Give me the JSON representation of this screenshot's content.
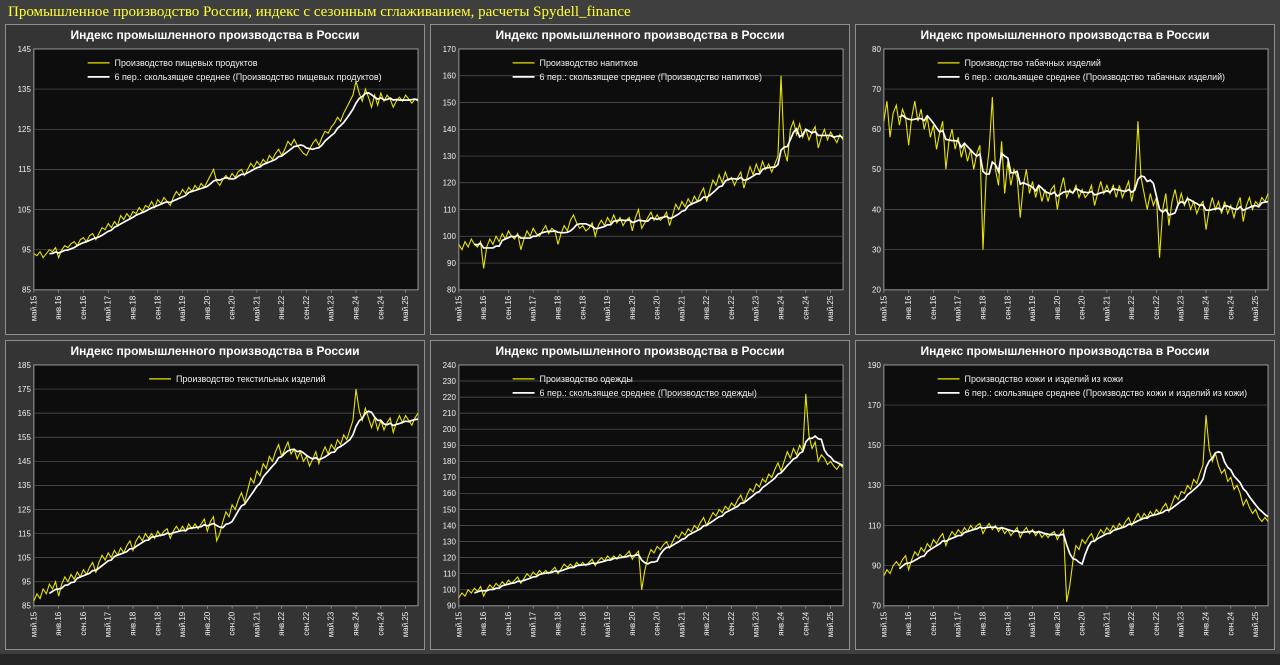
{
  "page": {
    "title": "Промышленное производство России, индекс с сезонным сглаживанием, расчеты Spydell_finance",
    "title_color": "#ffff33",
    "background": "#3f3f3f"
  },
  "colors": {
    "series": "#e8e400",
    "ma": "#ffffff",
    "plot_bg": "#0d0d0d",
    "plot_border": "#9a9a9a",
    "grid": "#575757",
    "text": "#f0f0f0"
  },
  "x_axis": {
    "labels": [
      "май.15",
      "янв.16",
      "сен.16",
      "май.17",
      "янв.18",
      "сен.18",
      "май.19",
      "янв.20",
      "сен.20",
      "май.21",
      "янв.22",
      "сен.22",
      "май.23",
      "янв.24",
      "сен.24",
      "май.25"
    ],
    "every": 8,
    "n_points": 125
  },
  "chart_data": [
    {
      "type": "line",
      "title": "Индекс промышленного производства в России",
      "legend": [
        {
          "label": "Производство пищевых продуктов",
          "color": "#e8e400"
        },
        {
          "label": "6 пер.: скользящее среднее (Производство пищевых продуктов)",
          "color": "#ffffff"
        }
      ],
      "ylim": [
        85,
        145
      ],
      "ytick_step": 10,
      "ma_period": 6,
      "values": [
        94,
        93.5,
        94.5,
        93,
        94,
        95,
        94.5,
        95.5,
        93,
        95,
        96,
        95.5,
        96.5,
        97,
        96,
        97.5,
        98,
        97,
        98.5,
        99,
        97.5,
        99,
        100.5,
        100,
        101.5,
        100.5,
        102,
        101,
        103.5,
        102.5,
        104,
        103,
        104.5,
        104,
        105.5,
        104.5,
        106,
        105.5,
        107,
        105.5,
        107.5,
        106.5,
        108,
        107,
        106,
        108,
        109.5,
        108.5,
        110,
        109,
        110.5,
        109.5,
        111,
        110,
        111.5,
        110.5,
        112,
        113.5,
        115,
        112,
        111,
        112.5,
        113.5,
        112.5,
        114,
        113,
        114.5,
        115,
        113.5,
        115,
        116.5,
        115.5,
        117,
        116,
        117.5,
        116.5,
        118.5,
        117.5,
        119,
        120,
        118.5,
        120,
        122,
        121,
        122.5,
        121,
        120,
        119,
        118.5,
        120,
        121.5,
        122.5,
        121,
        123,
        124.5,
        124,
        125.5,
        126.5,
        128,
        127,
        129,
        130.5,
        132,
        133.5,
        137,
        134,
        132,
        135,
        133,
        130.5,
        133.5,
        131,
        134,
        132,
        133.5,
        132.5,
        130.5,
        132,
        133,
        132,
        133.5,
        132.5,
        131.5,
        132.5,
        132
      ]
    },
    {
      "type": "line",
      "title": "Индекс промышленного производства в России",
      "legend": [
        {
          "label": "Производство напитков",
          "color": "#e8e400"
        },
        {
          "label": "6 пер.: скользящее среднее (Производство напитков)",
          "color": "#ffffff"
        }
      ],
      "ylim": [
        80,
        170
      ],
      "ytick_step": 10,
      "ma_period": 6,
      "values": [
        97,
        95,
        98,
        96,
        99,
        97,
        96,
        98,
        88,
        96,
        99,
        97,
        100,
        98,
        101,
        99,
        102,
        100,
        99,
        101,
        95,
        99,
        102,
        100,
        103,
        101,
        100,
        102,
        104,
        101,
        103,
        102,
        97,
        101,
        104,
        102,
        106,
        108,
        105,
        103,
        104,
        102,
        103,
        105,
        100,
        104,
        106,
        104,
        107,
        105,
        108,
        105,
        107,
        104,
        106,
        107,
        102,
        107,
        110,
        103,
        105,
        107,
        109,
        106,
        108,
        106,
        107,
        109,
        104,
        108,
        112,
        110,
        113,
        111,
        114,
        112,
        115,
        113,
        116,
        118,
        113,
        117,
        121,
        119,
        123,
        120,
        124,
        121,
        122,
        119,
        122,
        124,
        118,
        122,
        126,
        123,
        127,
        124,
        128,
        125,
        127,
        124,
        127,
        130,
        160,
        132,
        128,
        140,
        143,
        138,
        142,
        137,
        140,
        136,
        139,
        141,
        133,
        137,
        140,
        136,
        139,
        137,
        135,
        138,
        136
      ]
    },
    {
      "type": "line",
      "title": "Индекс промышленного производства в России",
      "legend": [
        {
          "label": "Производство табачных изделий",
          "color": "#e8e400"
        },
        {
          "label": "6 пер.: скользящее среднее (Производство табачных изделий)",
          "color": "#ffffff"
        }
      ],
      "ylim": [
        20,
        80
      ],
      "ytick_step": 10,
      "ma_period": 6,
      "values": [
        62,
        67,
        58,
        64,
        66,
        61,
        65,
        63,
        56,
        63,
        67,
        62,
        65,
        60,
        63,
        58,
        61,
        55,
        59,
        62,
        50,
        57,
        60,
        55,
        58,
        53,
        56,
        52,
        55,
        50,
        54,
        56,
        30,
        48,
        55,
        68,
        50,
        46,
        57,
        44,
        52,
        46,
        50,
        48,
        38,
        46,
        50,
        44,
        47,
        43,
        46,
        42,
        45,
        42,
        45,
        46,
        40,
        45,
        48,
        43,
        45,
        44,
        46,
        43,
        45,
        43,
        44,
        46,
        41,
        44,
        47,
        44,
        46,
        44,
        46,
        43,
        46,
        43,
        45,
        47,
        42,
        46,
        62,
        48,
        44,
        40,
        44,
        41,
        43,
        28,
        40,
        44,
        36,
        42,
        45,
        41,
        44,
        41,
        43,
        40,
        42,
        39,
        41,
        42,
        35,
        40,
        43,
        40,
        42,
        39,
        42,
        39,
        41,
        38,
        41,
        43,
        37,
        41,
        43,
        40,
        42,
        41,
        43,
        42,
        44
      ]
    },
    {
      "type": "line",
      "title": "Индекс промышленного производства в России",
      "legend": [
        {
          "label": "Производство текстильных изделий",
          "color": "#e8e400"
        }
      ],
      "ylim": [
        85,
        185
      ],
      "ytick_step": 10,
      "ma_period": 6,
      "values": [
        87,
        90,
        88,
        92,
        90,
        94,
        92,
        95,
        89,
        94,
        97,
        95,
        98,
        96,
        99,
        97,
        100,
        98,
        101,
        103,
        99,
        103,
        106,
        104,
        107,
        105,
        108,
        106,
        109,
        107,
        110,
        112,
        108,
        112,
        114,
        112,
        115,
        113,
        115,
        113,
        116,
        114,
        116,
        117,
        113,
        116,
        118,
        116,
        118,
        116,
        119,
        117,
        119,
        117,
        119,
        121,
        116,
        120,
        122,
        112,
        115,
        120,
        124,
        122,
        127,
        125,
        129,
        132,
        128,
        133,
        138,
        136,
        141,
        139,
        144,
        142,
        147,
        145,
        149,
        152,
        147,
        150,
        153,
        148,
        150,
        146,
        149,
        145,
        147,
        143,
        146,
        149,
        144,
        148,
        151,
        148,
        152,
        150,
        154,
        152,
        156,
        154,
        158,
        162,
        175,
        166,
        162,
        167,
        163,
        159,
        163,
        158,
        162,
        158,
        161,
        163,
        157,
        161,
        164,
        161,
        164,
        162,
        160,
        163,
        165
      ]
    },
    {
      "type": "line",
      "title": "Индекс промышленного производства в России",
      "legend": [
        {
          "label": "Производство одежды",
          "color": "#e8e400"
        },
        {
          "label": "6 пер.: скользящее среднее (Производство одежды)",
          "color": "#ffffff"
        }
      ],
      "ylim": [
        90,
        240
      ],
      "ytick_step": 10,
      "ma_period": 6,
      "values": [
        95,
        98,
        96,
        100,
        98,
        101,
        99,
        102,
        96,
        100,
        103,
        101,
        104,
        102,
        105,
        103,
        106,
        104,
        106,
        108,
        104,
        107,
        110,
        108,
        111,
        109,
        112,
        110,
        112,
        110,
        112,
        114,
        110,
        113,
        116,
        114,
        116,
        114,
        117,
        115,
        117,
        115,
        117,
        119,
        115,
        118,
        120,
        118,
        121,
        119,
        121,
        119,
        122,
        120,
        122,
        124,
        119,
        122,
        124,
        100,
        112,
        120,
        125,
        123,
        127,
        125,
        128,
        130,
        126,
        130,
        134,
        132,
        136,
        134,
        138,
        136,
        140,
        138,
        142,
        145,
        140,
        144,
        148,
        146,
        150,
        148,
        152,
        150,
        154,
        152,
        156,
        159,
        154,
        159,
        163,
        161,
        166,
        164,
        169,
        167,
        172,
        170,
        175,
        179,
        174,
        180,
        186,
        182,
        188,
        184,
        190,
        186,
        222,
        196,
        188,
        192,
        180,
        184,
        182,
        178,
        180,
        177,
        175,
        178,
        176
      ]
    },
    {
      "type": "line",
      "title": "Индекс промышленного производства в России",
      "legend": [
        {
          "label": "Производство кожи и изделий из кожи",
          "color": "#e8e400"
        },
        {
          "label": "6 пер.: скользящее среднее (Производство кожи и изделий из кожи)",
          "color": "#ffffff"
        }
      ],
      "ylim": [
        70,
        190
      ],
      "ytick_step": 20,
      "ma_period": 6,
      "values": [
        85,
        88,
        86,
        90,
        92,
        90,
        93,
        95,
        88,
        93,
        97,
        95,
        99,
        97,
        101,
        99,
        103,
        101,
        104,
        106,
        100,
        104,
        107,
        105,
        108,
        106,
        109,
        107,
        110,
        108,
        110,
        111,
        106,
        109,
        111,
        108,
        110,
        107,
        109,
        106,
        108,
        105,
        107,
        109,
        104,
        107,
        109,
        106,
        108,
        105,
        107,
        104,
        106,
        104,
        106,
        107,
        103,
        106,
        108,
        72,
        80,
        92,
        100,
        98,
        103,
        101,
        104,
        106,
        102,
        105,
        108,
        106,
        109,
        107,
        110,
        108,
        111,
        109,
        112,
        114,
        110,
        113,
        116,
        113,
        116,
        114,
        117,
        115,
        118,
        116,
        119,
        121,
        117,
        121,
        125,
        123,
        127,
        126,
        130,
        128,
        133,
        131,
        136,
        140,
        165,
        148,
        142,
        146,
        140,
        136,
        138,
        132,
        134,
        128,
        130,
        126,
        120,
        123,
        119,
        116,
        118,
        114,
        112,
        114,
        112
      ]
    }
  ]
}
